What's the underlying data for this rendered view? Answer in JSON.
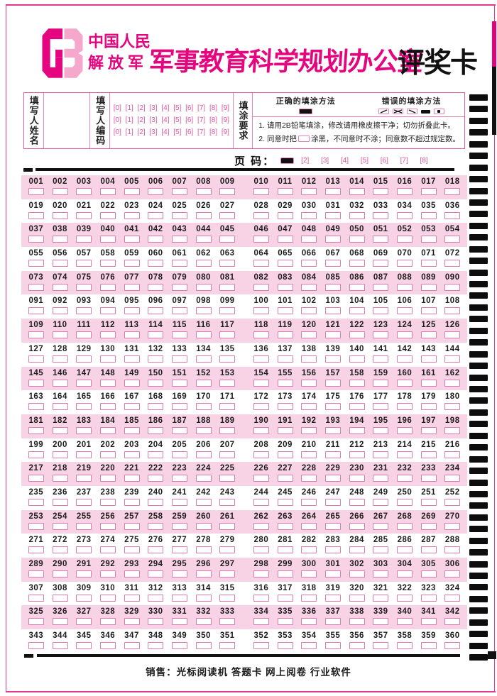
{
  "header": {
    "org_line1": "中国人民",
    "org_line2": "解放军",
    "title_script": "军事教育科学规划办公室",
    "title_black": "评奖卡"
  },
  "form": {
    "name_label": "填写人姓名",
    "code_label": "填写人编码",
    "digit_row": "[0] [1] [2] [3] [4] [5] [6] [7] [8] [9]",
    "requirements_label": "填涂要求",
    "correct_method_title": "正确的填涂方法",
    "wrong_method_title": "错误的填涂方法",
    "rule1": "1. 请用2B铅笔填涂，修改请用橡皮擦干净；切勿折叠此卡。",
    "rule2_prefix": "2. 同意时把",
    "rule2_suffix": "涂黑，不同意时不涂；同意数不超过规定数。"
  },
  "page_code": {
    "label": "页 码：",
    "filled_value": "1",
    "bubbles": "[2] [3] [4] [5] [6] [7] [8]"
  },
  "grid": {
    "rows": [
      [
        "001",
        "002",
        "003",
        "004",
        "005",
        "006",
        "007",
        "008",
        "009",
        "010",
        "011",
        "012",
        "013",
        "014",
        "015",
        "016",
        "017",
        "018"
      ],
      [
        "019",
        "020",
        "021",
        "022",
        "023",
        "024",
        "025",
        "026",
        "027",
        "028",
        "029",
        "030",
        "031",
        "032",
        "033",
        "034",
        "035",
        "036"
      ],
      [
        "037",
        "038",
        "039",
        "040",
        "041",
        "042",
        "043",
        "044",
        "045",
        "046",
        "047",
        "048",
        "049",
        "050",
        "051",
        "052",
        "053",
        "054"
      ],
      [
        "055",
        "056",
        "057",
        "058",
        "059",
        "060",
        "061",
        "062",
        "063",
        "064",
        "065",
        "066",
        "067",
        "068",
        "069",
        "070",
        "071",
        "072"
      ],
      [
        "073",
        "074",
        "075",
        "076",
        "077",
        "078",
        "079",
        "080",
        "081",
        "082",
        "083",
        "084",
        "085",
        "086",
        "087",
        "088",
        "089",
        "090"
      ],
      [
        "091",
        "092",
        "093",
        "094",
        "095",
        "096",
        "097",
        "098",
        "099",
        "100",
        "101",
        "102",
        "103",
        "104",
        "105",
        "106",
        "107",
        "108"
      ],
      [
        "109",
        "110",
        "111",
        "112",
        "113",
        "114",
        "115",
        "116",
        "117",
        "118",
        "119",
        "120",
        "121",
        "122",
        "123",
        "124",
        "125",
        "126"
      ],
      [
        "127",
        "128",
        "129",
        "130",
        "131",
        "132",
        "133",
        "134",
        "135",
        "136",
        "137",
        "138",
        "139",
        "140",
        "141",
        "142",
        "143",
        "144"
      ],
      [
        "145",
        "146",
        "147",
        "148",
        "149",
        "150",
        "151",
        "152",
        "153",
        "154",
        "155",
        "156",
        "157",
        "158",
        "159",
        "160",
        "161",
        "162"
      ],
      [
        "163",
        "164",
        "165",
        "166",
        "167",
        "168",
        "169",
        "170",
        "171",
        "172",
        "173",
        "174",
        "175",
        "176",
        "177",
        "178",
        "179",
        "180"
      ],
      [
        "181",
        "182",
        "183",
        "184",
        "185",
        "186",
        "187",
        "188",
        "189",
        "190",
        "191",
        "192",
        "193",
        "194",
        "195",
        "196",
        "197",
        "198"
      ],
      [
        "199",
        "200",
        "201",
        "202",
        "203",
        "204",
        "205",
        "206",
        "207",
        "208",
        "209",
        "210",
        "211",
        "212",
        "213",
        "214",
        "215",
        "216"
      ],
      [
        "217",
        "218",
        "219",
        "220",
        "221",
        "222",
        "223",
        "224",
        "225",
        "226",
        "227",
        "228",
        "229",
        "230",
        "231",
        "232",
        "233",
        "234"
      ],
      [
        "235",
        "236",
        "237",
        "238",
        "239",
        "240",
        "241",
        "242",
        "243",
        "244",
        "245",
        "246",
        "247",
        "248",
        "249",
        "250",
        "251",
        "252"
      ],
      [
        "253",
        "254",
        "255",
        "256",
        "257",
        "258",
        "259",
        "260",
        "261",
        "262",
        "263",
        "264",
        "265",
        "266",
        "267",
        "268",
        "269",
        "270"
      ],
      [
        "271",
        "272",
        "273",
        "274",
        "275",
        "276",
        "277",
        "278",
        "279",
        "280",
        "281",
        "282",
        "283",
        "284",
        "285",
        "286",
        "287",
        "288"
      ],
      [
        "289",
        "290",
        "291",
        "292",
        "293",
        "294",
        "295",
        "296",
        "297",
        "298",
        "299",
        "300",
        "301",
        "302",
        "303",
        "304",
        "305",
        "306"
      ],
      [
        "307",
        "308",
        "309",
        "310",
        "311",
        "312",
        "313",
        "314",
        "315",
        "316",
        "317",
        "318",
        "319",
        "320",
        "321",
        "322",
        "323",
        "324"
      ],
      [
        "325",
        "326",
        "327",
        "328",
        "329",
        "330",
        "331",
        "332",
        "333",
        "334",
        "335",
        "336",
        "337",
        "338",
        "339",
        "340",
        "341",
        "342"
      ],
      [
        "343",
        "344",
        "345",
        "346",
        "347",
        "348",
        "349",
        "350",
        "351",
        "352",
        "353",
        "354",
        "355",
        "356",
        "357",
        "358",
        "359",
        "360"
      ]
    ]
  },
  "footer": {
    "text": "销售：光标阅读机  答题卡  网上阅卷  行业软件"
  },
  "icons": {
    "logo": "gb-octagon-logo",
    "correct_mark": "filled-black-bar",
    "wrong_marks": [
      "slash-mark",
      "cross-mark",
      "backslash-mark",
      "solid-bar-mark",
      "dot-mark"
    ]
  },
  "colors": {
    "magenta": "#e5057e",
    "pink_light_logo": "#f6a8cc",
    "row_pink": "#f8d2e5",
    "bubble_border": "#dd7ab0",
    "black": "#111111"
  },
  "decor": {
    "right_timing_marks": 49,
    "timing_top": 133,
    "timing_step": 16.44
  }
}
